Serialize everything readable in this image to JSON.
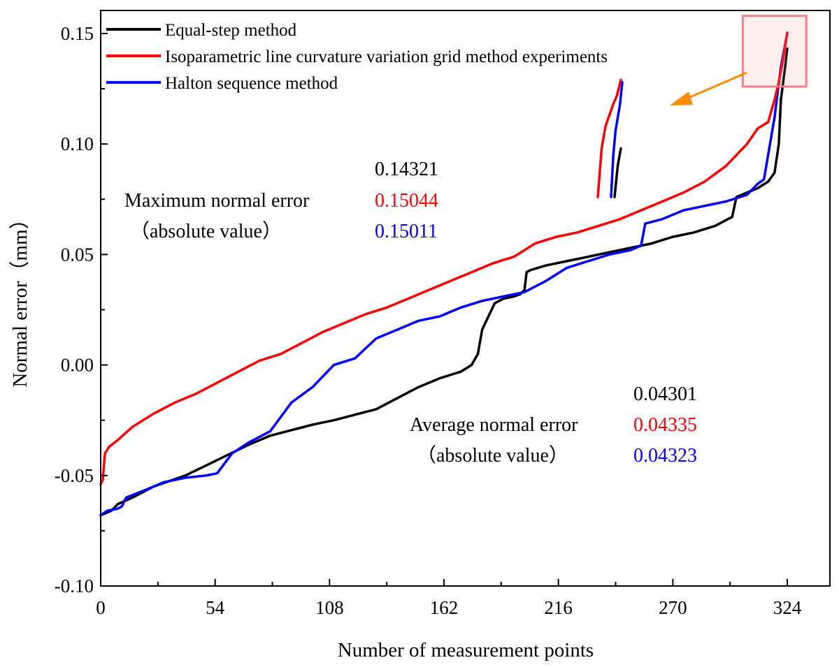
{
  "chart_data": {
    "type": "line",
    "title": "",
    "xlabel": "Number of measurement points",
    "ylabel": "Normal error（mm）",
    "xlim": [
      0,
      336
    ],
    "ylim": [
      -0.1,
      0.16
    ],
    "x_ticks": [
      0,
      54,
      108,
      162,
      216,
      270,
      324
    ],
    "x_tick_labels": [
      "0",
      "54",
      "108",
      "162",
      "216",
      "270",
      "324"
    ],
    "y_ticks": [
      -0.1,
      -0.05,
      0.0,
      0.05,
      0.1,
      0.15
    ],
    "y_tick_labels": [
      "-0.10",
      "-0.05",
      "0.00",
      "0.05",
      "0.10",
      "0.15"
    ],
    "legend_position": "top-left",
    "series": [
      {
        "name": "Equal-step method",
        "color": "#000000",
        "x": [
          0,
          5,
          8,
          15,
          25,
          40,
          55,
          70,
          80,
          100,
          110,
          118,
          130,
          140,
          150,
          160,
          170,
          175,
          178,
          180,
          182,
          186,
          190,
          195,
          198,
          200,
          201,
          203,
          210,
          220,
          230,
          240,
          250,
          260,
          270,
          280,
          290,
          298,
          300,
          305,
          310,
          315,
          318,
          320,
          321,
          323,
          324
        ],
        "values": [
          -0.068,
          -0.066,
          -0.063,
          -0.06,
          -0.055,
          -0.05,
          -0.043,
          -0.036,
          -0.032,
          -0.027,
          -0.025,
          -0.023,
          -0.02,
          -0.015,
          -0.01,
          -0.006,
          -0.003,
          0.0,
          0.005,
          0.016,
          0.02,
          0.028,
          0.03,
          0.031,
          0.032,
          0.034,
          0.042,
          0.043,
          0.045,
          0.047,
          0.049,
          0.051,
          0.053,
          0.055,
          0.058,
          0.06,
          0.063,
          0.067,
          0.076,
          0.078,
          0.08,
          0.083,
          0.087,
          0.1,
          0.12,
          0.135,
          0.14321
        ]
      },
      {
        "name": "Isoparametric line curvature variation grid method experiments",
        "color": "#ff0000",
        "x": [
          0,
          1,
          2,
          4,
          8,
          15,
          25,
          35,
          45,
          55,
          65,
          75,
          85,
          95,
          105,
          115,
          125,
          135,
          145,
          155,
          165,
          175,
          185,
          195,
          205,
          215,
          225,
          235,
          245,
          255,
          265,
          275,
          285,
          295,
          300,
          305,
          310,
          315,
          318,
          320,
          322,
          324
        ],
        "values": [
          -0.054,
          -0.052,
          -0.04,
          -0.037,
          -0.034,
          -0.028,
          -0.022,
          -0.017,
          -0.013,
          -0.008,
          -0.003,
          0.002,
          0.005,
          0.01,
          0.015,
          0.019,
          0.023,
          0.026,
          0.03,
          0.034,
          0.038,
          0.042,
          0.046,
          0.049,
          0.055,
          0.058,
          0.06,
          0.063,
          0.066,
          0.07,
          0.074,
          0.078,
          0.083,
          0.09,
          0.095,
          0.1,
          0.107,
          0.11,
          0.12,
          0.128,
          0.138,
          0.15044
        ]
      },
      {
        "name": "Halton sequence method",
        "color": "#0000ff",
        "x": [
          0,
          3,
          8,
          10,
          12,
          20,
          30,
          40,
          50,
          55,
          62,
          70,
          80,
          90,
          100,
          105,
          110,
          120,
          130,
          135,
          140,
          150,
          160,
          170,
          180,
          190,
          200,
          210,
          220,
          230,
          240,
          250,
          255,
          257,
          265,
          275,
          285,
          295,
          305,
          310,
          313,
          318,
          321,
          324
        ],
        "values": [
          -0.068,
          -0.066,
          -0.065,
          -0.064,
          -0.06,
          -0.057,
          -0.053,
          -0.051,
          -0.05,
          -0.049,
          -0.04,
          -0.035,
          -0.03,
          -0.017,
          -0.01,
          -0.005,
          0.0,
          0.003,
          0.012,
          0.014,
          0.016,
          0.02,
          0.022,
          0.026,
          0.029,
          0.031,
          0.033,
          0.038,
          0.044,
          0.047,
          0.05,
          0.052,
          0.054,
          0.064,
          0.066,
          0.07,
          0.072,
          0.074,
          0.077,
          0.082,
          0.084,
          0.112,
          0.135,
          0.15011
        ]
      }
    ],
    "annotations": {
      "max_label_line1": "Maximum normal error",
      "max_label_line2": "（absolute value）",
      "max_values": [
        "0.14321",
        "0.15044",
        "0.15011"
      ],
      "avg_label_line1": "Average normal error",
      "avg_label_line2": "（absolute value）",
      "avg_values": [
        "0.04301",
        "0.04335",
        "0.04323"
      ]
    },
    "inset_zoom": {
      "highlight_x_range": [
        303,
        333
      ],
      "highlight_y_range": [
        0.126,
        0.158
      ],
      "box_color": "#ff8080",
      "arrow_color": "#ff8c00",
      "zoom_segments": [
        {
          "color": "#ff0000",
          "values": [
            0.076,
            0.098,
            0.108,
            0.113,
            0.118,
            0.122,
            0.129
          ]
        },
        {
          "color": "#0000ff",
          "values": [
            0.076,
            0.095,
            0.106,
            0.112,
            0.118,
            0.128
          ]
        },
        {
          "color": "#000000",
          "values": [
            0.076,
            0.09,
            0.098
          ]
        }
      ]
    }
  }
}
